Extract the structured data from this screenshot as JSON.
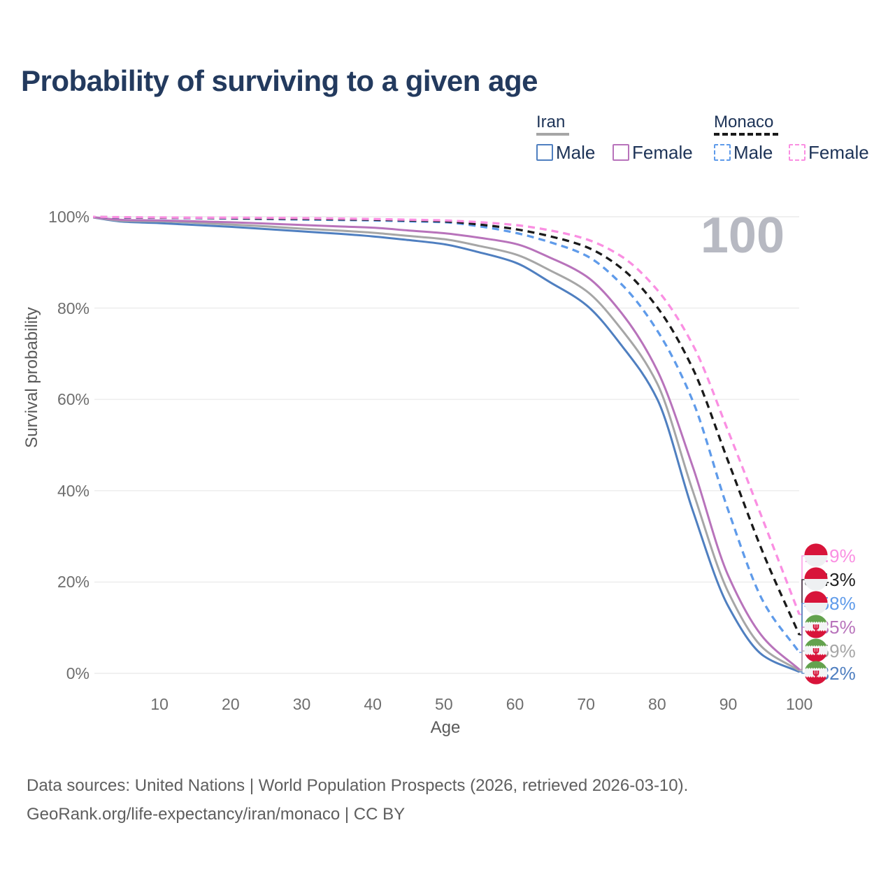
{
  "title": "Probability of surviving to a given age",
  "watermark_age": "100",
  "legend": {
    "groups": [
      {
        "id": "iran",
        "label": "Iran",
        "line_style": "solid",
        "underline_color": "#a6a6a6",
        "items": [
          {
            "label": "Male",
            "color": "#4f7fc0"
          },
          {
            "label": "Female",
            "color": "#b873bb"
          }
        ]
      },
      {
        "id": "monaco",
        "label": "Monaco",
        "line_style": "dashed",
        "underline_color": "#1a1a1a",
        "items": [
          {
            "label": "Male",
            "color": "#5f9bea"
          },
          {
            "label": "Female",
            "color": "#fa8fe2"
          }
        ]
      }
    ]
  },
  "y_axis": {
    "title": "Survival probability",
    "ticks": [
      {
        "label": "100%",
        "value": 100
      },
      {
        "label": "80%",
        "value": 80
      },
      {
        "label": "60%",
        "value": 60
      },
      {
        "label": "40%",
        "value": 40
      },
      {
        "label": "20%",
        "value": 20
      },
      {
        "label": "0%",
        "value": 0
      }
    ]
  },
  "x_axis": {
    "title": "Age",
    "ticks": [
      10,
      20,
      30,
      40,
      50,
      60,
      70,
      80,
      90,
      100
    ]
  },
  "footer": {
    "line1": "Data sources: United Nations | World Population Prospects (2026, retrieved 2026-03-10).",
    "line2": "GeoRank.org/life-expectancy/iran/monaco | CC BY"
  },
  "chart_data": {
    "type": "line",
    "title": "Probability of surviving to a given age",
    "xlabel": "Age",
    "ylabel": "Survival probability",
    "x_range": [
      0,
      100
    ],
    "y_range_percent": [
      0,
      100
    ],
    "grid": "horizontal",
    "ages": [
      0,
      5,
      10,
      15,
      20,
      25,
      30,
      35,
      40,
      45,
      50,
      55,
      60,
      65,
      70,
      75,
      80,
      85,
      90,
      95,
      100
    ],
    "series": [
      {
        "name": "Monaco Female",
        "country": "Monaco",
        "sex": "Female",
        "style": "dashed",
        "color": "#fa8fe2",
        "flag": "monaco",
        "end_label": "12.9%",
        "end_value_percent": 12.9,
        "values_percent": [
          100,
          99.9,
          99.85,
          99.8,
          99.8,
          99.75,
          99.7,
          99.6,
          99.5,
          99.35,
          99.2,
          98.8,
          98.2,
          97.0,
          95.1,
          91.3,
          84.0,
          72.0,
          53.0,
          33.1,
          12.9
        ]
      },
      {
        "name": "Monaco (both sexes)",
        "country": "Monaco",
        "sex": "Both",
        "style": "dashed",
        "color": "#1a1a1a",
        "flag": "monaco",
        "end_label": "8.43%",
        "end_value_percent": 8.43,
        "values_percent": [
          100,
          99.85,
          99.8,
          99.75,
          99.7,
          99.6,
          99.55,
          99.45,
          99.35,
          99.2,
          99.0,
          98.3,
          97.3,
          95.7,
          93.4,
          88.7,
          80.2,
          66.8,
          46.4,
          26.0,
          8.43
        ]
      },
      {
        "name": "Monaco Male",
        "country": "Monaco",
        "sex": "Male",
        "style": "dashed",
        "color": "#5f9bea",
        "flag": "monaco",
        "end_label": "4.58%",
        "end_value_percent": 4.58,
        "values_percent": [
          100,
          99.8,
          99.75,
          99.7,
          99.6,
          99.5,
          99.4,
          99.3,
          99.2,
          99.0,
          98.8,
          97.9,
          96.5,
          94.4,
          91.5,
          85.2,
          75.1,
          59.7,
          35.7,
          15.5,
          4.58
        ]
      },
      {
        "name": "Iran Female",
        "country": "Iran",
        "sex": "Female",
        "style": "solid",
        "color": "#b873bb",
        "flag": "iran",
        "end_label": "0.85%",
        "end_value_percent": 0.85,
        "values_percent": [
          100,
          99.3,
          99.2,
          99.0,
          98.8,
          98.5,
          98.2,
          97.9,
          97.6,
          97.0,
          96.4,
          95.4,
          94.1,
          91.0,
          87.0,
          78.9,
          66.4,
          45.3,
          21.4,
          7.7,
          0.85
        ]
      },
      {
        "name": "Iran (both sexes)",
        "country": "Iran",
        "sex": "Both",
        "style": "solid",
        "color": "#a6a6a6",
        "flag": "iran",
        "end_label": "0.59%",
        "end_value_percent": 0.59,
        "values_percent": [
          100,
          99.1,
          99.0,
          98.7,
          98.3,
          97.9,
          97.4,
          97.0,
          96.5,
          95.8,
          95.1,
          93.6,
          91.8,
          88.2,
          83.8,
          75.3,
          63.5,
          40.0,
          17.8,
          5.4,
          0.59
        ]
      },
      {
        "name": "Iran Male",
        "country": "Iran",
        "sex": "Male",
        "style": "solid",
        "color": "#4f7fc0",
        "flag": "iran",
        "end_label": "0.32%",
        "end_value_percent": 0.32,
        "values_percent": [
          100,
          98.9,
          98.6,
          98.2,
          97.8,
          97.3,
          96.8,
          96.3,
          95.7,
          94.9,
          94.0,
          92.2,
          90.0,
          85.6,
          80.7,
          71.8,
          60.1,
          35.7,
          14.7,
          3.8,
          0.32
        ]
      }
    ],
    "colors": {
      "iran_male": "#4f7fc0",
      "iran_female": "#b873bb",
      "iran_both": "#a6a6a6",
      "monaco_male": "#5f9bea",
      "monaco_female": "#fa8fe2",
      "monaco_both": "#1a1a1a",
      "flag_red": "#d8143a",
      "flag_green": "#63a24e",
      "title_text": "#233a5e",
      "axis_text": "#6e6e6e",
      "gridline": "#ececec",
      "watermark": "#b7b9c2"
    }
  }
}
